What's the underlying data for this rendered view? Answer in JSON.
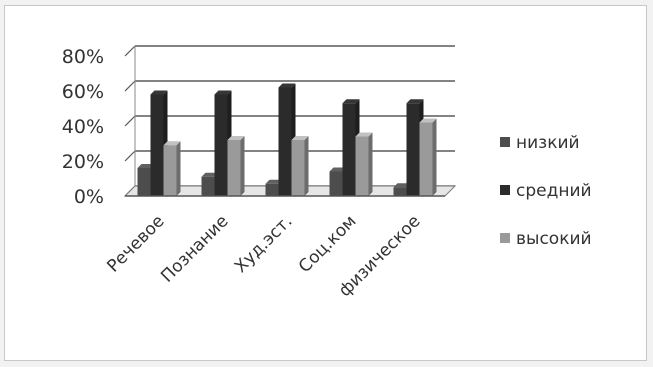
{
  "chart_data": {
    "type": "bar",
    "style": "3d-clustered-column",
    "categories": [
      "Речевое",
      "Познание",
      "Худ.эст.",
      "Соц.ком",
      "физическое"
    ],
    "series": [
      {
        "name": "низкий",
        "values": [
          16,
          11,
          7,
          14,
          5
        ],
        "color": "#4d4d4d"
      },
      {
        "name": "средний",
        "values": [
          58,
          58,
          62,
          53,
          53
        ],
        "color": "#2b2b2b"
      },
      {
        "name": "высокий",
        "values": [
          29,
          32,
          32,
          34,
          42
        ],
        "color": "#9a9a9a"
      }
    ],
    "ylim": [
      0,
      80
    ],
    "yticks": [
      "0%",
      "20%",
      "40%",
      "60%",
      "80%"
    ],
    "ytick_values": [
      0,
      20,
      40,
      60,
      80
    ],
    "grid": true,
    "legend_position": "right",
    "title": "",
    "xlabel": "",
    "ylabel": ""
  }
}
